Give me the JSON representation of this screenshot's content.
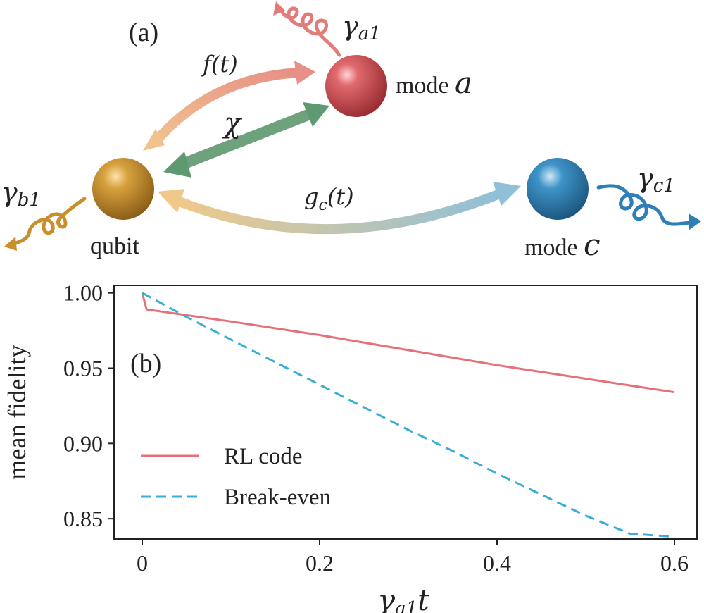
{
  "panel_a": {
    "label": "(a)",
    "nodes": {
      "mode_a": {
        "name": "mode ",
        "symbol": "a",
        "color": "#cf4f55"
      },
      "qubit": {
        "name": "qubit",
        "color": "#c98f2a"
      },
      "mode_c": {
        "name": "mode ",
        "symbol": "c",
        "color": "#2f7fb6"
      }
    },
    "couplings": {
      "f": "f(t)",
      "chi": "χ",
      "gc_base": "g",
      "gc_sub": "c",
      "gc_arg": "(t)"
    },
    "decays": {
      "a": {
        "sym": "γ",
        "sub": "a1",
        "color": "#e07c79"
      },
      "b": {
        "sym": "γ",
        "sub": "b1",
        "color": "#c98f2a"
      },
      "c": {
        "sym": "γ",
        "sub": "c1",
        "color": "#2f7fb6"
      }
    },
    "colors": {
      "f_arrow": "#e6a07e",
      "chi_arrow": "#6ea27c",
      "gc_arrow_start": "#f0c98a",
      "gc_arrow_end": "#8fc0d8"
    }
  },
  "panel_b": {
    "label": "(b)",
    "ylabel": "mean fidelity",
    "xlabel_sym": "γ",
    "xlabel_sub": "a1",
    "xlabel_var": "t",
    "xticks": [
      "0",
      "0.2",
      "0.4",
      "0.6"
    ],
    "yticks": [
      "1.00",
      "0.95",
      "0.90",
      "0.85"
    ],
    "legend": [
      {
        "label": "RL code",
        "color": "#e6707a",
        "dash": "solid"
      },
      {
        "label": "Break-even",
        "color": "#3aaed8",
        "dash": "dashed"
      }
    ]
  },
  "chart_data": {
    "type": "line",
    "xlim": [
      0,
      0.6
    ],
    "ylim": [
      0.8365,
      1.005
    ],
    "legend_position": "center-left",
    "series": [
      {
        "name": "RL code",
        "x": [
          0,
          0.005,
          0.1,
          0.2,
          0.3,
          0.4,
          0.5,
          0.6
        ],
        "y": [
          1.0,
          0.989,
          0.981,
          0.972,
          0.962,
          0.952,
          0.943,
          0.934
        ]
      },
      {
        "name": "Break-even",
        "x": [
          0,
          0.05,
          0.1,
          0.15,
          0.2,
          0.25,
          0.3,
          0.35,
          0.4,
          0.45,
          0.5,
          0.55,
          0.6
        ],
        "y": [
          1.0,
          0.984,
          0.969,
          0.954,
          0.939,
          0.924,
          0.909,
          0.895,
          0.88,
          0.866,
          0.852,
          0.84,
          0.838
        ]
      }
    ]
  }
}
